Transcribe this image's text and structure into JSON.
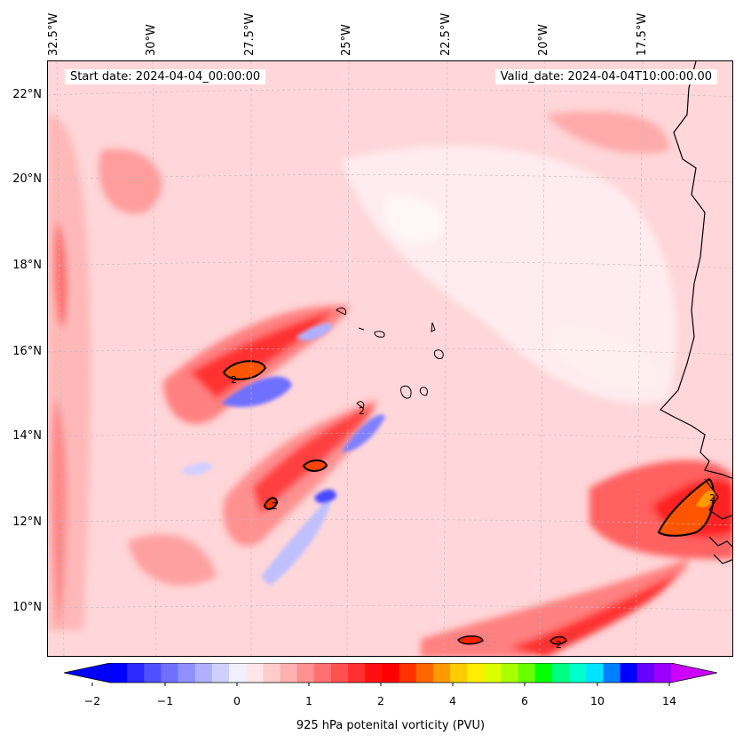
{
  "map": {
    "start_date": "Start date: 2024-04-04_00:00:00",
    "valid_date": "Valid_date: 2024-04-04T10:00:00.00",
    "longitude_labels": [
      "32.5°W",
      "30°W",
      "27.5°W",
      "25°W",
      "22.5°W",
      "20°W",
      "17.5°W"
    ],
    "latitude_labels": [
      "22°N",
      "20°N",
      "18°N",
      "16°N",
      "14°N",
      "12°N",
      "10°N"
    ],
    "contour_label": "2"
  },
  "colorbar": {
    "tick_labels": [
      "−2",
      "−1",
      "0",
      "1",
      "2",
      "4",
      "6",
      "10",
      "14"
    ],
    "label": "925 hPa potenital vorticity (PVU)",
    "colors": [
      "#0000ff",
      "#2a2aff",
      "#5050ff",
      "#7070ff",
      "#9090ff",
      "#b0b0ff",
      "#d0d0ff",
      "#f0f0ff",
      "#ffe6e9",
      "#ffcccc",
      "#ffb0b0",
      "#ff9090",
      "#ff7070",
      "#ff5050",
      "#ff3030",
      "#ff1010",
      "#ff0000",
      "#ff3300",
      "#ff6600",
      "#ff9900",
      "#ffcc00",
      "#ffee00",
      "#ddff00",
      "#aaff00",
      "#66ff00",
      "#00ff00",
      "#00ff80",
      "#00ffcc",
      "#00e5ff",
      "#0080ff",
      "#0000ff",
      "#6600ff",
      "#9900ff"
    ],
    "under_color": "#0000ff",
    "over_color": "#cc00ff"
  }
}
